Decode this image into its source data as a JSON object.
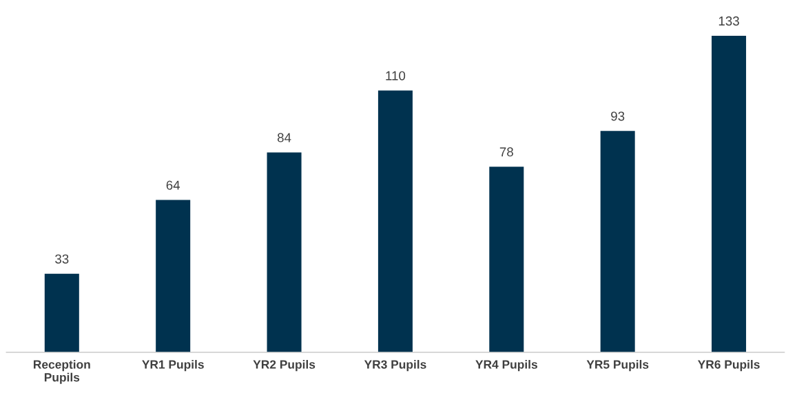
{
  "chart_data": {
    "type": "bar",
    "categories": [
      "Reception Pupils",
      "YR1 Pupils",
      "YR2 Pupils",
      "YR3 Pupils",
      "YR4 Pupils",
      "YR5 Pupils",
      "YR6 Pupils"
    ],
    "values": [
      33,
      64,
      84,
      110,
      78,
      93,
      133
    ],
    "color": "#00324f",
    "data_labels": true,
    "grid": false,
    "legend": false
  }
}
